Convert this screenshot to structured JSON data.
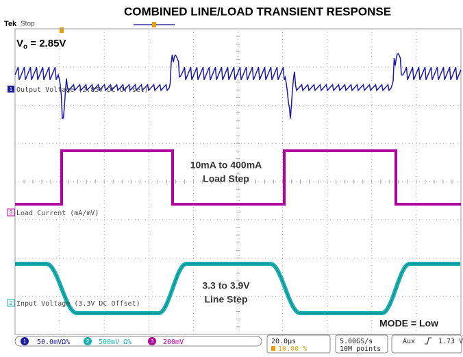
{
  "header": {
    "title": "COMBINED LINE/LOAD TRANSIENT RESPONSE",
    "brand": "Tek",
    "state": "Stop"
  },
  "vo_label": {
    "main": "V",
    "sub": "o",
    "rest": " = 2.85V"
  },
  "channels": [
    {
      "number": "1",
      "label": "Output Voltage (2.85V DC Offset)"
    },
    {
      "number": "3",
      "label": "Load Current (mA/mV)"
    },
    {
      "number": "2",
      "label": "Input Voltage (3.3V DC Offset)"
    }
  ],
  "annotations": {
    "load_line1": "10mA to 400mA",
    "load_line2": "Load Step",
    "line_line1": "3.3 to 3.9V",
    "line_line2": "Line Step",
    "mode": "MODE = Low"
  },
  "status": {
    "ch1": {
      "number": "1",
      "scale": "50.0mVΩ%"
    },
    "ch2": {
      "number": "2",
      "scale": "500mV Ω%"
    },
    "ch3": {
      "number": "3",
      "scale": "200mV"
    },
    "timebase": "20.0µs",
    "position": "10.00 %",
    "rate": "5.00GS/s",
    "points": "10M points",
    "trigger_source": "Aux",
    "trigger_level": "1.73 V"
  }
}
